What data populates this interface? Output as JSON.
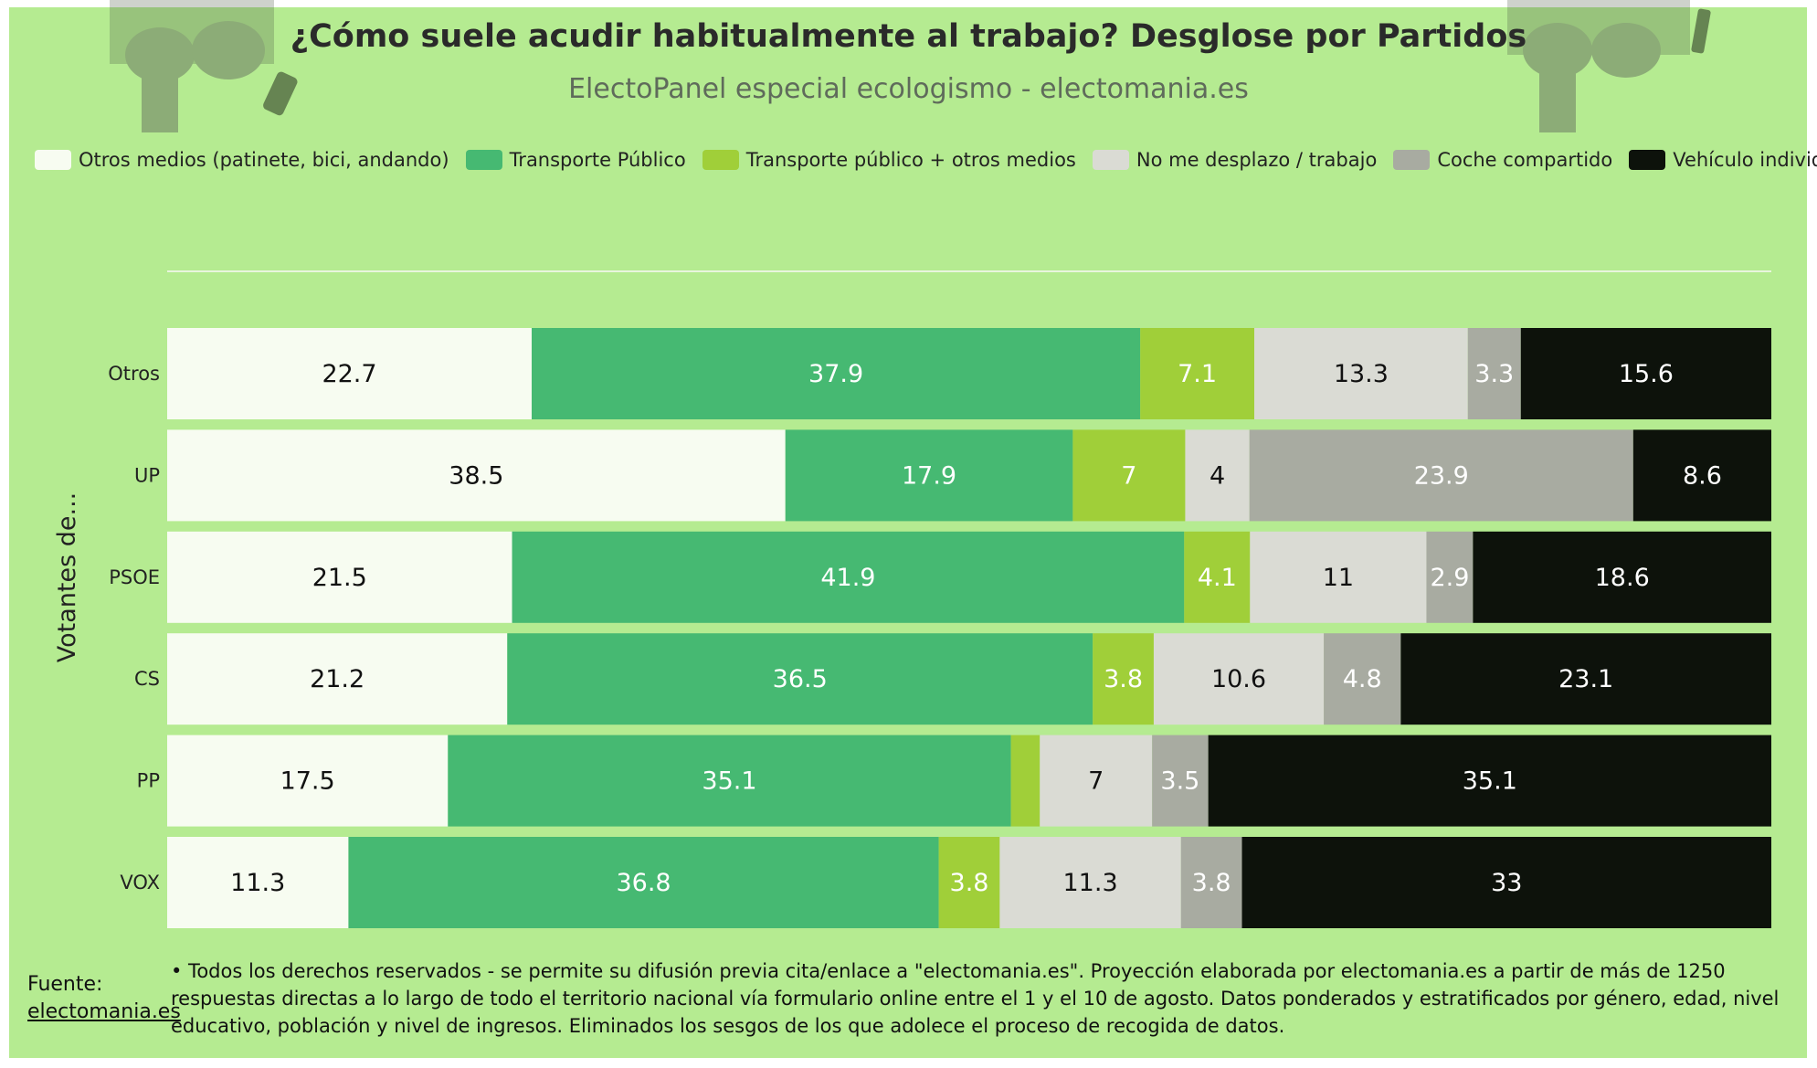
{
  "header": {
    "title": "¿Cómo suele acudir habitualmente al trabajo? Desglose por Partidos",
    "subtitle": "ElectoPanel especial ecologismo - electomania.es"
  },
  "colors": {
    "background": "#b5eb91",
    "otros_medios": "#f7fcf1",
    "transporte_publico": "#46b972",
    "tp_otros": "#a0cf39",
    "no_desplazo": "#dadbd4",
    "coche_compartido": "#a8aba1",
    "vehiculo_individual": "#0d120b"
  },
  "chart_data": {
    "type": "bar",
    "orientation": "horizontal",
    "stacked": true,
    "ylabel": "Votantes de...",
    "categories": [
      "Otros",
      "UP",
      "PSOE",
      "CS",
      "PP",
      "VOX"
    ],
    "legend_position": "top",
    "series": [
      {
        "name": "Otros medios (patinete, bici, andando)",
        "values": [
          22.7,
          38.5,
          21.5,
          21.2,
          17.5,
          11.3
        ]
      },
      {
        "name": "Transporte Público",
        "values": [
          37.9,
          17.9,
          41.9,
          36.5,
          35.1,
          36.8
        ]
      },
      {
        "name": "Transporte público + otros medios",
        "values": [
          7.1,
          7,
          4.1,
          3.8,
          1.8,
          3.8
        ]
      },
      {
        "name": "No me desplazo / trabajo",
        "values": [
          13.3,
          4,
          11,
          10.6,
          7,
          11.3
        ]
      },
      {
        "name": "Coche compartido",
        "values": [
          3.3,
          23.9,
          2.9,
          4.8,
          3.5,
          3.8
        ]
      },
      {
        "name": "Vehículo individual",
        "values": [
          15.6,
          8.6,
          18.6,
          23.1,
          35.1,
          33
        ]
      }
    ],
    "hidden_labels": [
      [
        4,
        2
      ]
    ]
  },
  "footer": {
    "source_label": "Fuente:",
    "source_link": "electomania.es",
    "note": "• Todos los derechos reservados - se permite su difusión previa cita/enlace a \"electomania.es\". Proyección elaborada por electomania.es a partir de más de 1250 respuestas directas a lo largo de todo el territorio nacional vía formulario online entre el 1 y el 10 de agosto. Datos ponderados y estratificados por género, edad, nivel educativo, población y nivel de ingresos. Eliminados los sesgos de los que adolece el proceso de recogida de datos."
  }
}
